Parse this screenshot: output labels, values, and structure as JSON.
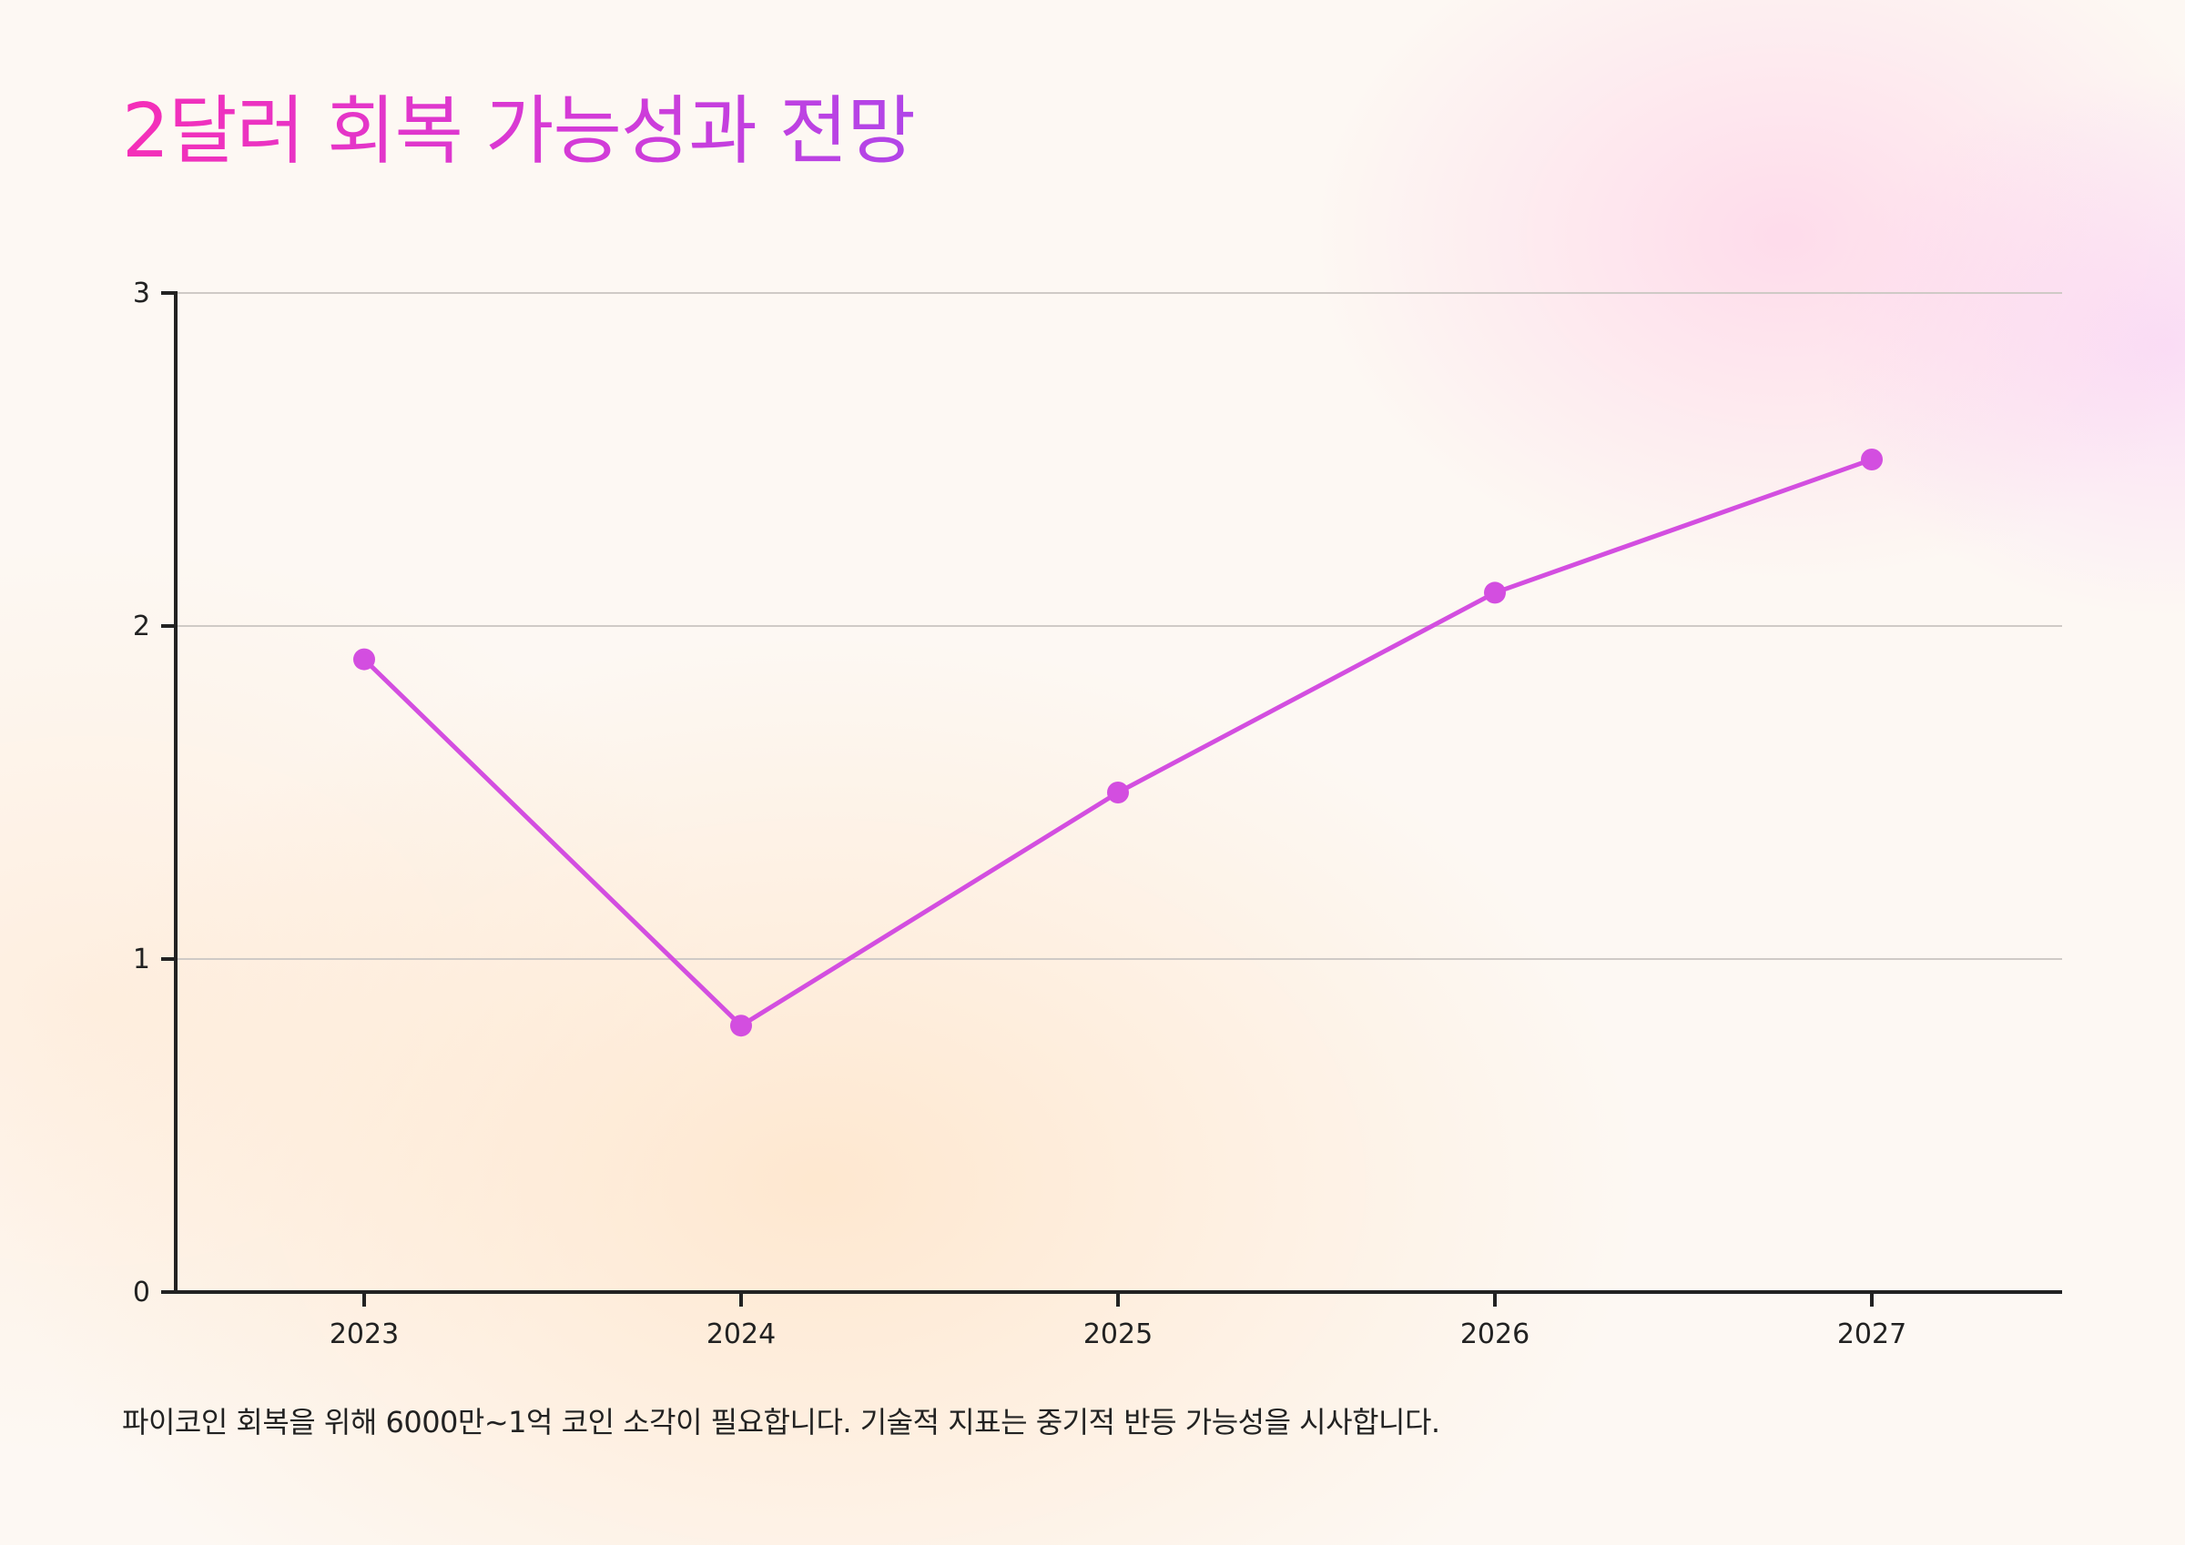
{
  "title": "2달러 회복 가능성과 전망",
  "footnote": "파이코인 회복을 위해 6000만~1억 코인 소각이 필요합니다. 기술적 지표는 중기적 반등 가능성을 시사합니다.",
  "colors": {
    "line": "#d34ee0",
    "axis": "#222222",
    "grid": "#cfcac6",
    "title_start": "#f52fb8",
    "title_end": "#b145e8"
  },
  "chart_data": {
    "type": "line",
    "title": "",
    "xlabel": "",
    "ylabel": "",
    "categories": [
      "2023",
      "2024",
      "2025",
      "2026",
      "2027"
    ],
    "series": [
      {
        "values": [
          1.9,
          0.8,
          1.5,
          2.1,
          2.5
        ]
      }
    ],
    "ylim": [
      0,
      3
    ],
    "yticks": [
      "0",
      "1",
      "2",
      "3"
    ],
    "grid": true,
    "legend": "none"
  }
}
